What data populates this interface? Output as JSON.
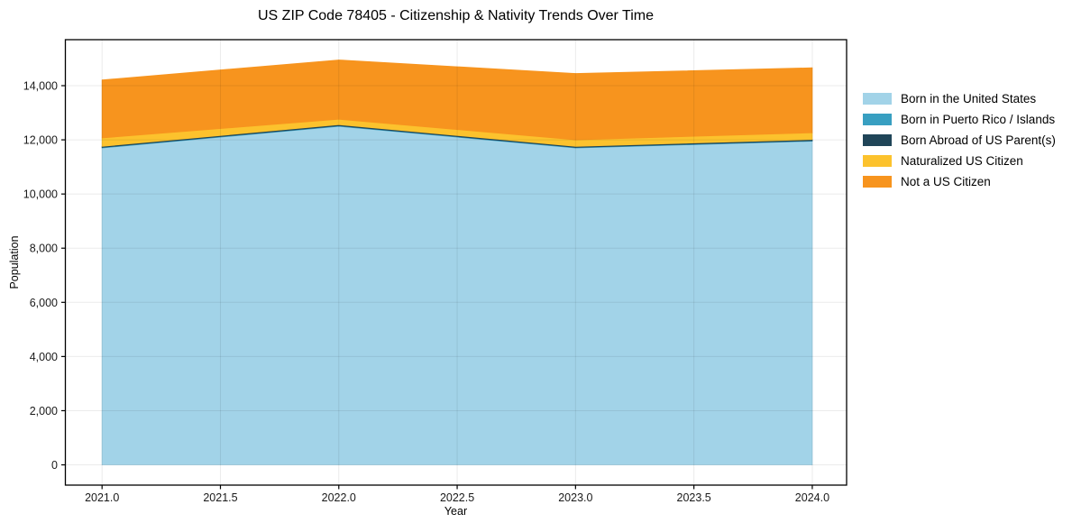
{
  "chart_data": {
    "type": "area",
    "stacked": true,
    "title": "US ZIP Code 78405 - Citizenship & Nativity Trends Over Time",
    "xlabel": "Year",
    "ylabel": "Population",
    "x": [
      2021,
      2022,
      2023,
      2024
    ],
    "series": [
      {
        "name": "Born in the United States",
        "color": "#a2d3e8",
        "values": [
          11700,
          12500,
          11700,
          11950
        ]
      },
      {
        "name": "Born in Puerto Rico / Islands",
        "color": "#389fc1",
        "values": [
          20,
          20,
          20,
          20
        ]
      },
      {
        "name": "Born Abroad of US Parent(s)",
        "color": "#204558",
        "values": [
          40,
          40,
          40,
          40
        ]
      },
      {
        "name": "Naturalized US Citizen",
        "color": "#fcc22d",
        "values": [
          310,
          200,
          240,
          250
        ]
      },
      {
        "name": "Not a US Citizen",
        "color": "#f7941e",
        "values": [
          2140,
          2190,
          2450,
          2400
        ]
      }
    ],
    "totals": [
      14210,
      14950,
      14450,
      14660
    ],
    "xlim": [
      2020.845,
      2024.145
    ],
    "ylim": [
      -748,
      15698
    ],
    "xticks": {
      "values": [
        2021.0,
        2021.5,
        2022.0,
        2022.5,
        2023.0,
        2023.5,
        2024.0
      ],
      "labels": [
        "2021.0",
        "2021.5",
        "2022.0",
        "2022.5",
        "2023.0",
        "2023.5",
        "2024.0"
      ]
    },
    "yticks": {
      "values": [
        0,
        2000,
        4000,
        6000,
        8000,
        10000,
        12000,
        14000
      ],
      "labels": [
        "0",
        "2,000",
        "4,000",
        "6,000",
        "8,000",
        "10,000",
        "12,000",
        "14,000"
      ]
    },
    "grid": true,
    "legend_position": "right-outside",
    "colors": {
      "spine": "#000000",
      "tick_text": "#1a1a1a",
      "gridline": "rgba(0,0,0,0.08)",
      "background": "#ffffff"
    }
  }
}
